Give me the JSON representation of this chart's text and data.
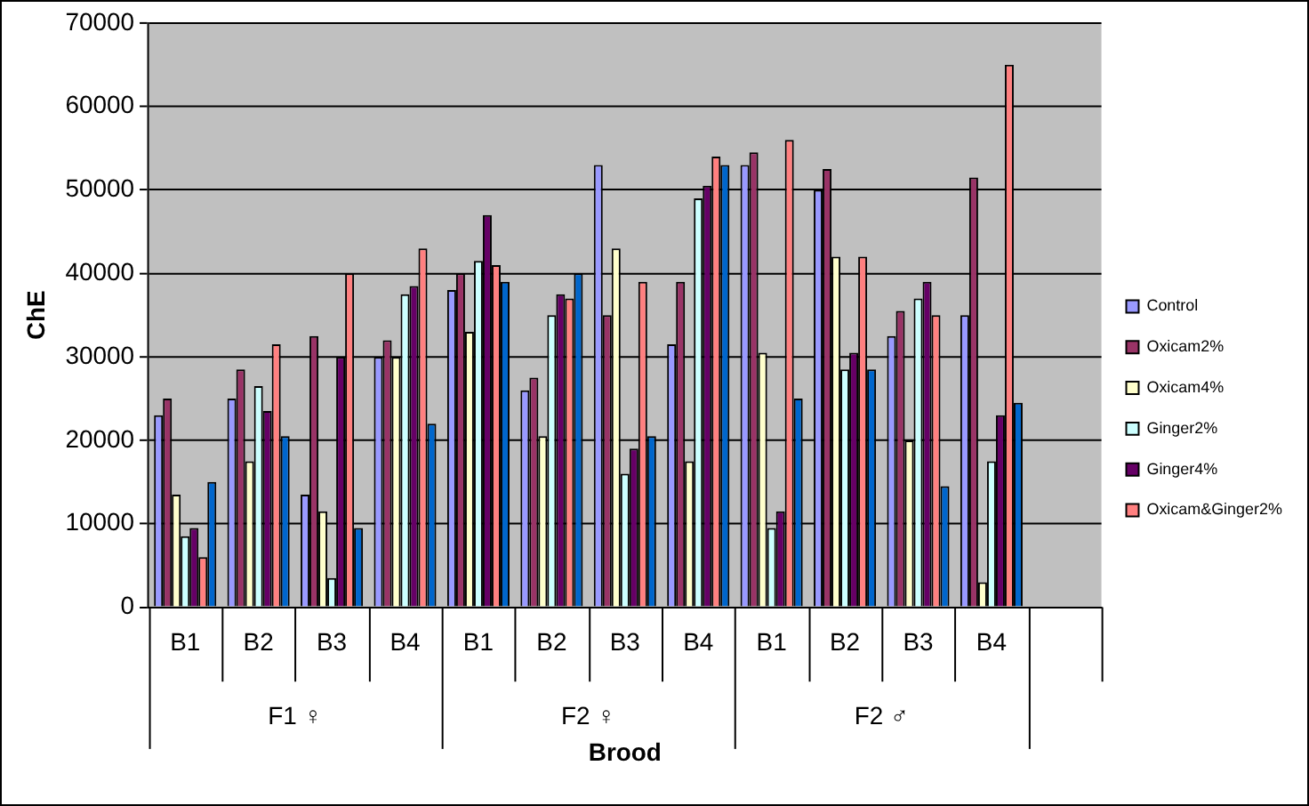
{
  "chart_data": {
    "type": "bar",
    "xlabel": "Brood",
    "ylabel": "ChE",
    "categories": [
      "B1",
      "B2",
      "B3",
      "B4",
      "B1",
      "B2",
      "B3",
      "B4",
      "B1",
      "B2",
      "B3",
      "B4",
      null
    ],
    "series": [
      {
        "name": "Control",
        "color": "#9999ff",
        "values": [
          23000,
          25000,
          13500,
          30000,
          38000,
          26000,
          53000,
          31500,
          53000,
          50000,
          32500,
          35000,
          null
        ]
      },
      {
        "name": "Oxicam2%",
        "color": "#993366",
        "values": [
          25000,
          28500,
          32500,
          32000,
          40000,
          27500,
          35000,
          39000,
          54500,
          52500,
          35500,
          51500,
          null
        ]
      },
      {
        "name": "Oxicam4%",
        "color": "#ffffcc",
        "values": [
          13500,
          17500,
          11500,
          30000,
          33000,
          20500,
          43000,
          17500,
          30500,
          42000,
          20000,
          3000,
          null
        ]
      },
      {
        "name": "Ginger2%",
        "color": "#ccffff",
        "values": [
          8500,
          26500,
          3500,
          37500,
          41500,
          35000,
          16000,
          49000,
          9500,
          28500,
          37000,
          17500,
          null
        ]
      },
      {
        "name": "Ginger4%",
        "color": "#660066",
        "values": [
          9500,
          23500,
          30000,
          38500,
          47000,
          37500,
          19000,
          50500,
          11500,
          30500,
          39000,
          23000,
          null
        ]
      },
      {
        "name": "Oxicam&Ginger2%",
        "color": "#ff8080",
        "values": [
          6000,
          31500,
          40000,
          43000,
          41000,
          37000,
          39000,
          54000,
          56000,
          42000,
          35000,
          65000,
          null
        ]
      },
      {
        "color": "#0066cc",
        "values": [
          15000,
          20500,
          9500,
          22000,
          39000,
          40000,
          20500,
          53000,
          25000,
          28500,
          14500,
          24500,
          null
        ]
      }
    ],
    "annotations": [
      "F1 ♀",
      "F2 ♀",
      "F2 ♂"
    ],
    "ylim": [
      0,
      70000
    ],
    "yticks": [
      0,
      10000,
      20000,
      30000,
      40000,
      50000,
      60000,
      70000
    ],
    "grid": "y",
    "legend": "right"
  }
}
